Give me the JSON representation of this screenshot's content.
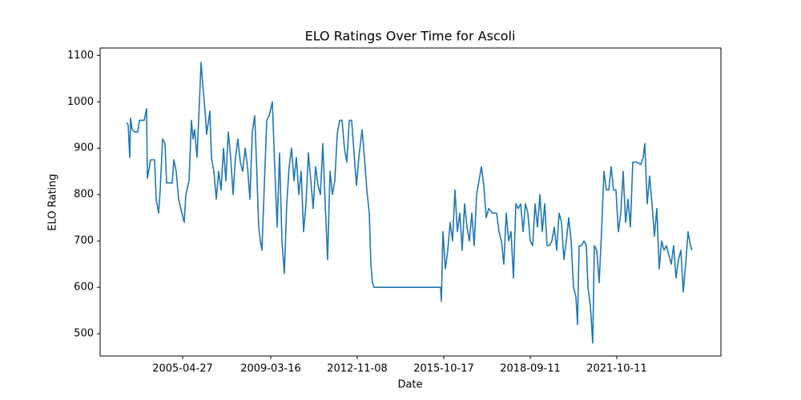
{
  "chart_data": {
    "type": "line",
    "title": "ELO Ratings Over Time for Ascoli",
    "x_label": "Date",
    "y_label": "ELO Rating",
    "xlim": [
      125,
      900
    ],
    "ylim": [
      452,
      1116
    ],
    "xticks": [
      {
        "value": 228,
        "label": "2005-04-27"
      },
      {
        "value": 338,
        "label": "2009-03-16"
      },
      {
        "value": 446,
        "label": "2012-11-08"
      },
      {
        "value": 554,
        "label": "2015-10-17"
      },
      {
        "value": 662,
        "label": "2018-09-11"
      },
      {
        "value": 770,
        "label": "2021-10-11"
      }
    ],
    "yticks": [
      500,
      600,
      700,
      800,
      900,
      1000,
      1100
    ],
    "grid": false,
    "x": [
      158,
      160,
      162,
      163,
      165,
      168,
      172,
      174,
      180,
      183,
      184,
      188,
      193,
      195,
      198,
      200,
      203,
      206,
      208,
      215,
      217,
      220,
      223,
      230,
      232,
      236,
      239,
      241,
      243,
      246,
      249,
      251,
      253,
      256,
      258,
      262,
      264,
      267,
      270,
      273,
      276,
      279,
      282,
      285,
      288,
      291,
      294,
      297,
      300,
      303,
      306,
      309,
      312,
      315,
      318,
      320,
      323,
      325,
      327,
      330,
      333,
      336,
      340,
      343,
      346,
      349,
      352,
      355,
      358,
      361,
      364,
      367,
      370,
      373,
      376,
      379,
      382,
      385,
      388,
      391,
      394,
      397,
      400,
      403,
      406,
      409,
      412,
      415,
      418,
      421,
      424,
      427,
      430,
      433,
      436,
      439,
      442,
      445,
      448,
      452,
      455,
      458,
      461,
      463,
      465,
      467,
      550,
      551,
      553,
      556,
      559,
      562,
      565,
      568,
      571,
      574,
      577,
      580,
      583,
      586,
      589,
      592,
      595,
      598,
      601,
      604,
      607,
      610,
      615,
      620,
      623,
      626,
      629,
      632,
      635,
      638,
      641,
      644,
      647,
      650,
      653,
      656,
      659,
      662,
      665,
      668,
      671,
      674,
      677,
      680,
      683,
      686,
      689,
      692,
      695,
      698,
      701,
      704,
      707,
      710,
      713,
      716,
      719,
      721,
      723,
      726,
      729,
      732,
      734,
      737,
      740,
      742,
      745,
      748,
      751,
      754,
      757,
      760,
      763,
      766,
      769,
      772,
      775,
      778,
      781,
      784,
      787,
      790,
      795,
      800,
      803,
      805,
      808,
      811,
      814,
      817,
      820,
      823,
      826,
      829,
      832,
      835,
      838,
      841,
      844,
      847,
      850,
      853,
      856,
      859,
      862,
      864
    ],
    "series": [
      {
        "name": "Ascoli",
        "color": "#1f77b4",
        "values": [
          955,
          950,
          880,
          965,
          940,
          935,
          935,
          960,
          960,
          985,
          835,
          875,
          875,
          790,
          760,
          810,
          920,
          910,
          825,
          825,
          875,
          850,
          790,
          740,
          800,
          830,
          960,
          920,
          940,
          880,
          1000,
          1085,
          1040,
          980,
          930,
          980,
          880,
          850,
          790,
          850,
          810,
          900,
          830,
          935,
          880,
          800,
          880,
          920,
          870,
          850,
          900,
          860,
          790,
          935,
          970,
          880,
          730,
          700,
          680,
          820,
          960,
          970,
          1000,
          860,
          730,
          890,
          700,
          630,
          780,
          860,
          900,
          830,
          880,
          800,
          850,
          720,
          780,
          890,
          830,
          770,
          860,
          820,
          800,
          910,
          780,
          660,
          850,
          800,
          830,
          930,
          960,
          960,
          900,
          870,
          960,
          960,
          890,
          820,
          880,
          940,
          880,
          810,
          760,
          650,
          610,
          600,
          600,
          570,
          720,
          640,
          680,
          740,
          700,
          810,
          720,
          760,
          680,
          780,
          730,
          700,
          760,
          690,
          800,
          830,
          860,
          820,
          750,
          770,
          760,
          760,
          720,
          700,
          650,
          760,
          700,
          720,
          620,
          780,
          770,
          780,
          720,
          780,
          760,
          700,
          690,
          780,
          730,
          800,
          720,
          780,
          690,
          690,
          700,
          730,
          680,
          760,
          740,
          660,
          700,
          750,
          700,
          600,
          580,
          520,
          690,
          690,
          700,
          690,
          600,
          560,
          480,
          690,
          680,
          610,
          720,
          850,
          810,
          810,
          860,
          810,
          810,
          720,
          760,
          850,
          740,
          790,
          730,
          870,
          870,
          865,
          880,
          910,
          780,
          840,
          780,
          710,
          770,
          640,
          700,
          680,
          690,
          670,
          650,
          690,
          620,
          660,
          680,
          590,
          650,
          720,
          690,
          680
        ]
      }
    ]
  }
}
